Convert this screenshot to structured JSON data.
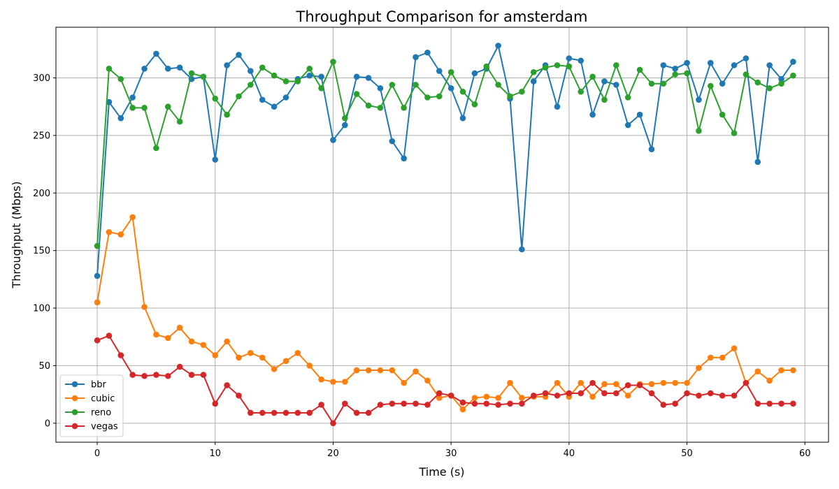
{
  "chart_data": {
    "type": "line",
    "title": "Throughput Comparison for amsterdam",
    "xlabel": "Time (s)",
    "ylabel": "Throughput (Mbps)",
    "xlim": [
      -3.5,
      62
    ],
    "ylim": [
      -16.5,
      344
    ],
    "xticks": [
      0,
      10,
      20,
      30,
      40,
      50,
      60
    ],
    "yticks": [
      0,
      50,
      100,
      150,
      200,
      250,
      300
    ],
    "grid": true,
    "legend_position": "bottom-left",
    "x": [
      0,
      1,
      2,
      3,
      4,
      5,
      6,
      7,
      8,
      9,
      10,
      11,
      12,
      13,
      14,
      15,
      16,
      17,
      18,
      19,
      20,
      21,
      22,
      23,
      24,
      25,
      26,
      27,
      28,
      29,
      30,
      31,
      32,
      33,
      34,
      35,
      36,
      37,
      38,
      39,
      40,
      41,
      42,
      43,
      44,
      45,
      46,
      47,
      48,
      49,
      50,
      51,
      52,
      53,
      54,
      55,
      56,
      57,
      58,
      59
    ],
    "series": [
      {
        "name": "bbr",
        "color": "#1f77b4",
        "values": [
          128,
          279,
          265,
          283,
          308,
          321,
          308,
          309,
          299,
          301,
          229,
          311,
          320,
          306,
          281,
          275,
          283,
          299,
          302,
          301,
          246,
          259,
          301,
          300,
          291,
          245,
          230,
          318,
          322,
          306,
          291,
          265,
          304,
          308,
          328,
          282,
          151,
          297,
          311,
          275,
          317,
          315,
          268,
          297,
          294,
          259,
          268,
          238,
          311,
          308,
          313,
          281,
          313,
          295,
          311,
          317,
          227,
          311,
          299,
          314
        ]
      },
      {
        "name": "cubic",
        "color": "#ff7f0e",
        "values": [
          105,
          166,
          164,
          179,
          101,
          77,
          74,
          83,
          71,
          68,
          59,
          71,
          57,
          61,
          57,
          47,
          54,
          61,
          50,
          38,
          36,
          36,
          46,
          46,
          46,
          46,
          35,
          45,
          37,
          22,
          24,
          12,
          22,
          23,
          22,
          35,
          22,
          23,
          23,
          35,
          23,
          35,
          23,
          34,
          34,
          24,
          34,
          34,
          35,
          35,
          35,
          48,
          57,
          57,
          65,
          35,
          45,
          37,
          46,
          46
        ]
      },
      {
        "name": "reno",
        "color": "#2ca02c",
        "values": [
          154,
          308,
          299,
          274,
          274,
          239,
          275,
          262,
          304,
          301,
          282,
          268,
          284,
          294,
          309,
          302,
          297,
          297,
          308,
          291,
          314,
          265,
          286,
          276,
          274,
          294,
          274,
          294,
          283,
          284,
          305,
          288,
          277,
          310,
          294,
          284,
          288,
          305,
          309,
          311,
          310,
          288,
          301,
          281,
          311,
          283,
          307,
          295,
          295,
          303,
          304,
          254,
          293,
          268,
          252,
          303,
          296,
          291,
          295,
          302
        ]
      },
      {
        "name": "vegas",
        "color": "#d62728",
        "values": [
          72,
          76,
          59,
          42,
          41,
          42,
          41,
          49,
          42,
          42,
          17,
          33,
          24,
          9,
          9,
          9,
          9,
          9,
          9,
          16,
          0,
          17,
          9,
          9,
          16,
          17,
          17,
          17,
          16,
          26,
          24,
          18,
          17,
          17,
          16,
          17,
          17,
          24,
          26,
          24,
          26,
          26,
          35,
          26,
          26,
          33,
          33,
          26,
          16,
          17,
          26,
          24,
          26,
          24,
          24,
          35,
          17,
          17,
          17,
          17
        ]
      }
    ]
  }
}
